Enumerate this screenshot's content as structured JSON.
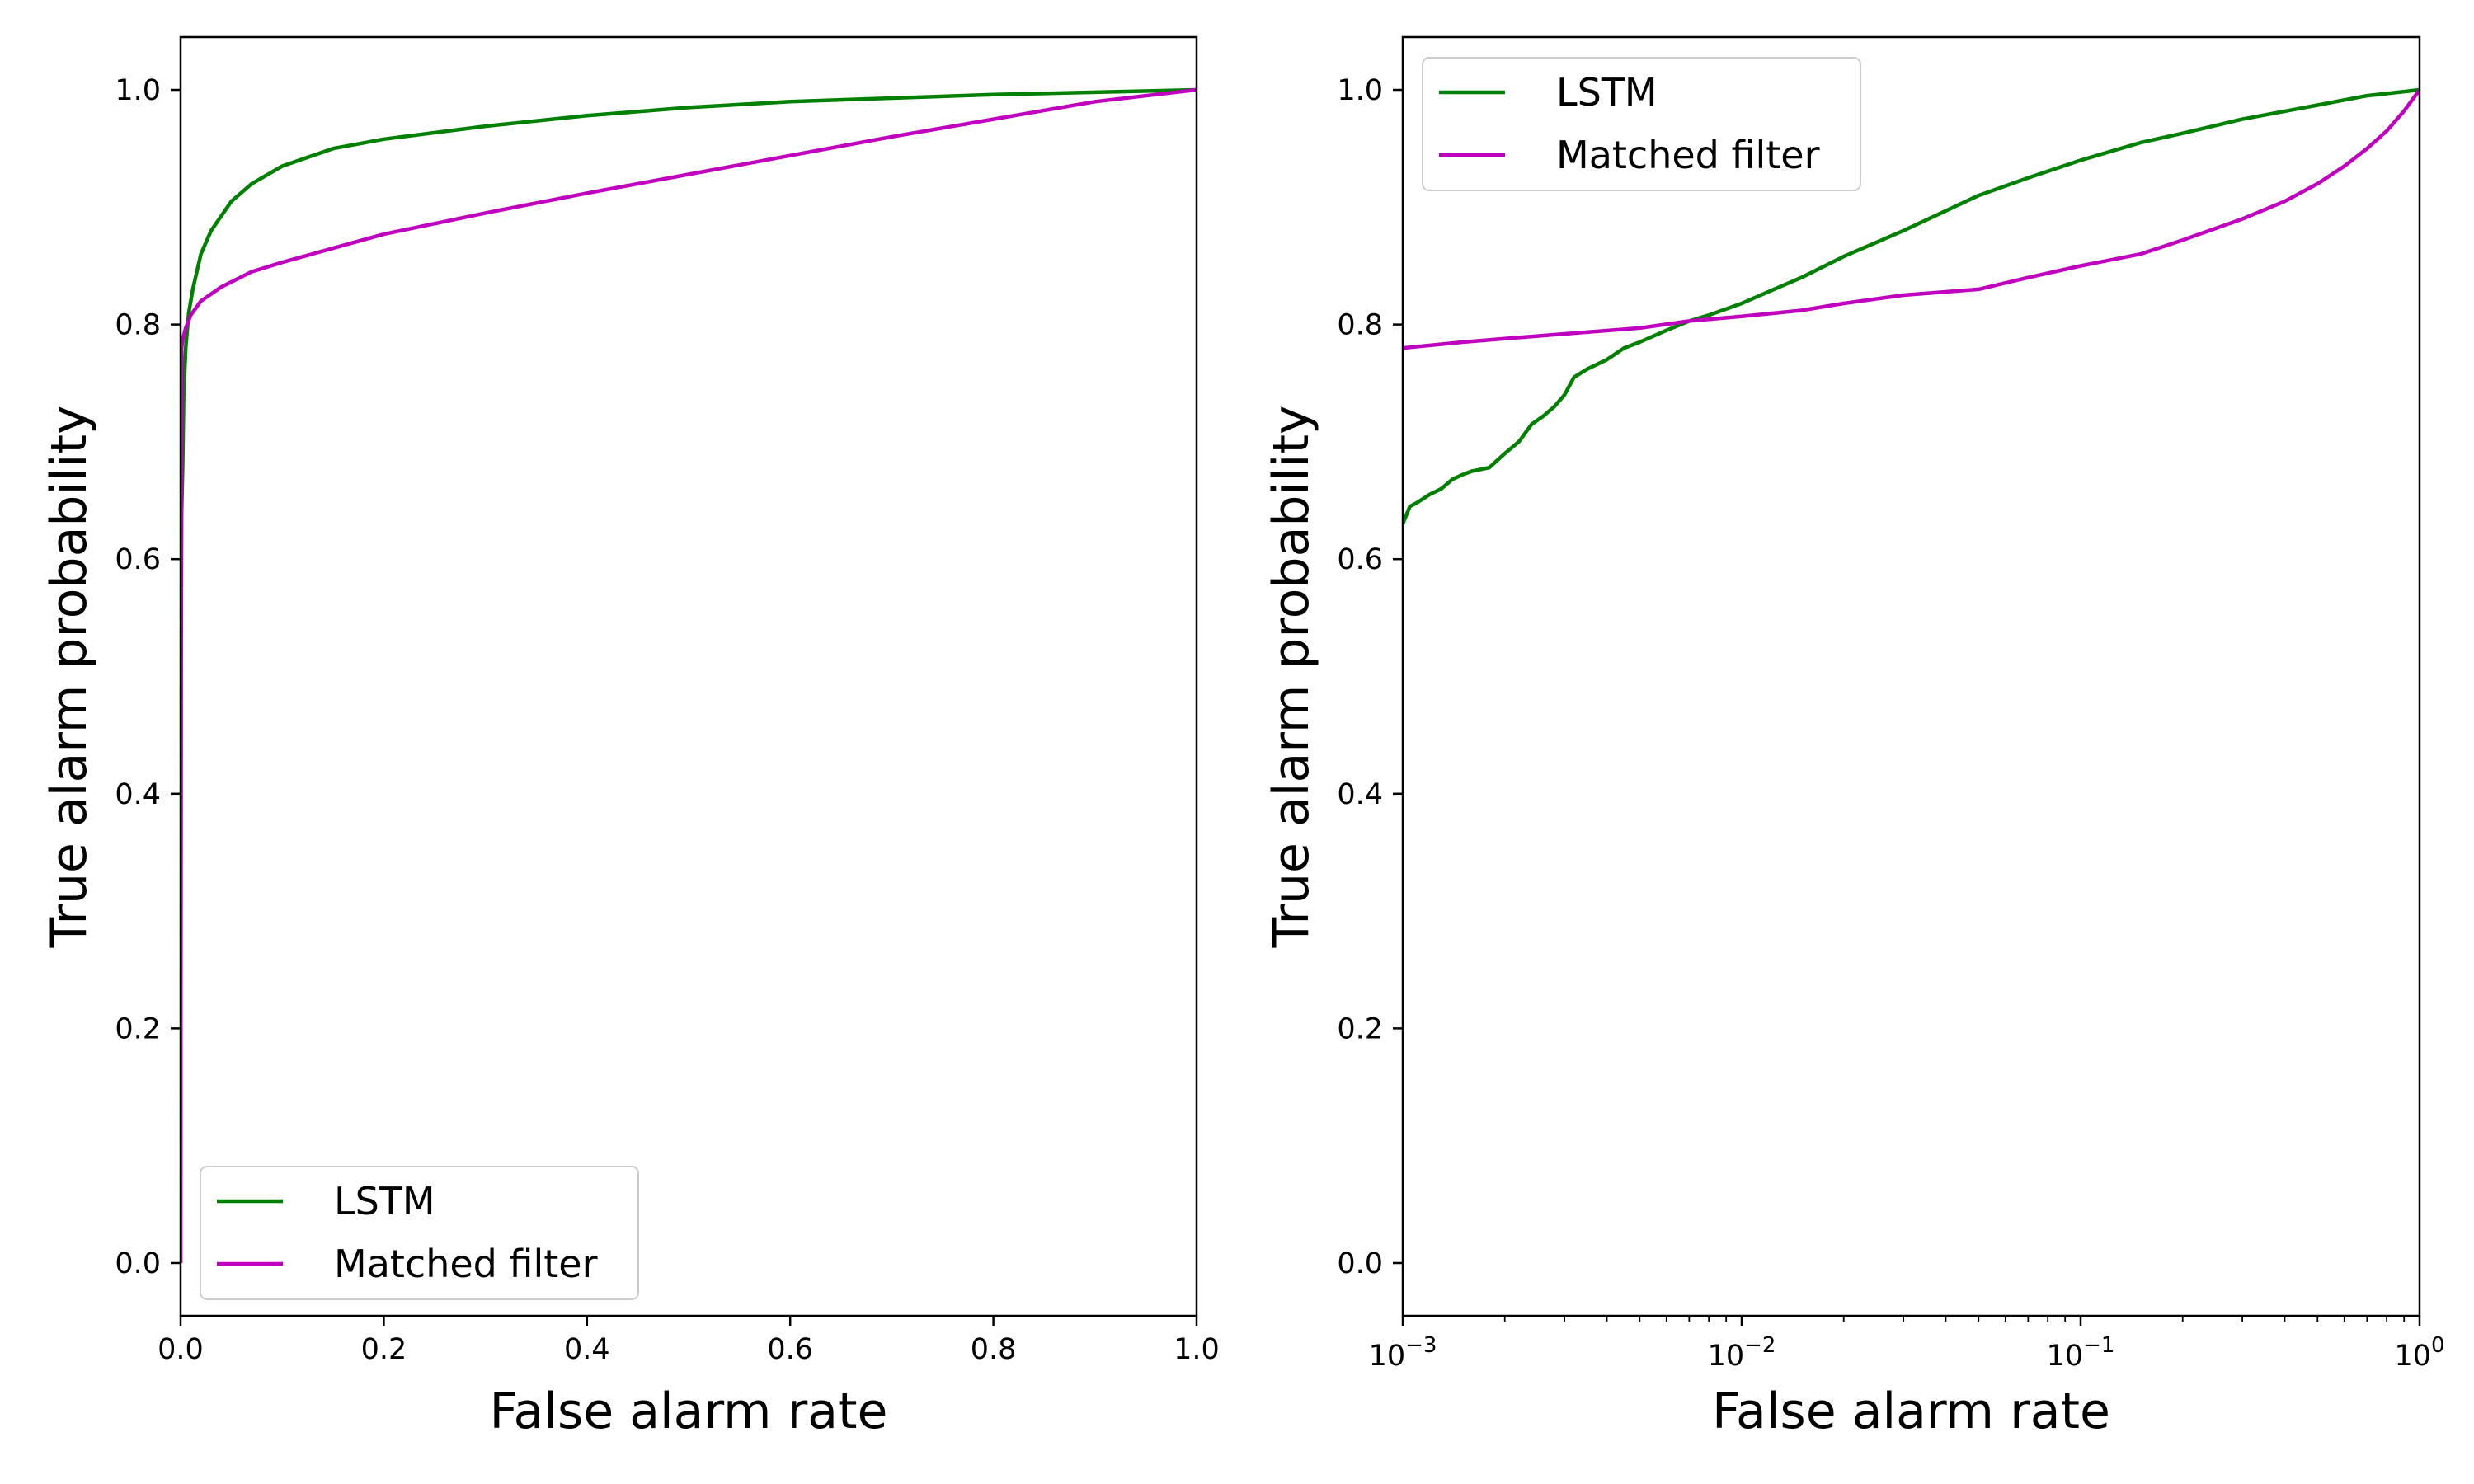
{
  "chart_data": [
    {
      "type": "line",
      "xscale": "linear",
      "xlabel": "False alarm rate",
      "ylabel": "True alarm probability",
      "xlim": [
        0,
        1
      ],
      "ylim": [
        -0.045,
        1.045
      ],
      "xticks": [
        0.0,
        0.2,
        0.4,
        0.6,
        0.8,
        1.0
      ],
      "xtick_labels": [
        "0.0",
        "0.2",
        "0.4",
        "0.6",
        "0.8",
        "1.0"
      ],
      "yticks": [
        0.0,
        0.2,
        0.4,
        0.6,
        0.8,
        1.0
      ],
      "ytick_labels": [
        "0.0",
        "0.2",
        "0.4",
        "0.6",
        "0.8",
        "1.0"
      ],
      "grid": false,
      "legend_position": "lower-left",
      "series": [
        {
          "name": "LSTM",
          "color": "#008000",
          "x": [
            0,
            0.0005,
            0.001,
            0.002,
            0.003,
            0.005,
            0.008,
            0.012,
            0.02,
            0.03,
            0.05,
            0.07,
            0.1,
            0.15,
            0.2,
            0.3,
            0.4,
            0.5,
            0.6,
            0.7,
            0.8,
            0.9,
            1.0
          ],
          "y": [
            0,
            0.5,
            0.64,
            0.68,
            0.74,
            0.78,
            0.81,
            0.83,
            0.86,
            0.88,
            0.905,
            0.92,
            0.935,
            0.95,
            0.958,
            0.969,
            0.978,
            0.985,
            0.99,
            0.993,
            0.996,
            0.998,
            1.0
          ]
        },
        {
          "name": "Matched filter",
          "color": "#bf00bf",
          "x": [
            0,
            0.0005,
            0.001,
            0.002,
            0.005,
            0.01,
            0.02,
            0.04,
            0.07,
            0.1,
            0.15,
            0.2,
            0.3,
            0.4,
            0.5,
            0.6,
            0.7,
            0.8,
            0.9,
            1.0
          ],
          "y": [
            0,
            0.6,
            0.78,
            0.787,
            0.797,
            0.808,
            0.82,
            0.832,
            0.845,
            0.853,
            0.865,
            0.877,
            0.895,
            0.912,
            0.928,
            0.944,
            0.96,
            0.975,
            0.99,
            1.0
          ]
        }
      ]
    },
    {
      "type": "line",
      "xscale": "log",
      "xlabel": "False alarm rate",
      "ylabel": "True alarm probability",
      "xlim": [
        0.001,
        1
      ],
      "ylim": [
        -0.045,
        1.045
      ],
      "xticks": [
        0.001,
        0.01,
        0.1,
        1
      ],
      "xtick_labels": [
        {
          "base": "10",
          "exp": "−3"
        },
        {
          "base": "10",
          "exp": "−2"
        },
        {
          "base": "10",
          "exp": "−1"
        },
        {
          "base": "10",
          "exp": "0"
        }
      ],
      "yticks": [
        0.0,
        0.2,
        0.4,
        0.6,
        0.8,
        1.0
      ],
      "ytick_labels": [
        "0.0",
        "0.2",
        "0.4",
        "0.6",
        "0.8",
        "1.0"
      ],
      "grid": false,
      "legend_position": "top-left",
      "series": [
        {
          "name": "LSTM",
          "color": "#008000",
          "x": [
            0.001,
            0.00105,
            0.0011,
            0.0012,
            0.0013,
            0.0014,
            0.0015,
            0.0016,
            0.0018,
            0.002,
            0.0022,
            0.0024,
            0.0026,
            0.0028,
            0.003,
            0.0032,
            0.0035,
            0.004,
            0.0045,
            0.005,
            0.006,
            0.007,
            0.008,
            0.01,
            0.012,
            0.015,
            0.02,
            0.03,
            0.05,
            0.07,
            0.1,
            0.15,
            0.2,
            0.3,
            0.5,
            0.7,
            1.0
          ],
          "y": [
            0.63,
            0.645,
            0.648,
            0.655,
            0.66,
            0.668,
            0.672,
            0.675,
            0.678,
            0.69,
            0.7,
            0.715,
            0.722,
            0.73,
            0.74,
            0.755,
            0.762,
            0.77,
            0.78,
            0.785,
            0.795,
            0.803,
            0.808,
            0.818,
            0.828,
            0.84,
            0.858,
            0.88,
            0.91,
            0.925,
            0.94,
            0.955,
            0.963,
            0.975,
            0.987,
            0.995,
            1.0
          ]
        },
        {
          "name": "Matched filter",
          "color": "#bf00bf",
          "x": [
            0.001,
            0.0015,
            0.002,
            0.003,
            0.005,
            0.007,
            0.01,
            0.015,
            0.02,
            0.03,
            0.05,
            0.07,
            0.1,
            0.15,
            0.2,
            0.3,
            0.4,
            0.5,
            0.6,
            0.7,
            0.8,
            0.9,
            1.0
          ],
          "y": [
            0.78,
            0.785,
            0.788,
            0.792,
            0.797,
            0.803,
            0.807,
            0.812,
            0.818,
            0.825,
            0.83,
            0.84,
            0.85,
            0.86,
            0.872,
            0.89,
            0.905,
            0.92,
            0.935,
            0.95,
            0.965,
            0.982,
            1.0
          ]
        }
      ]
    }
  ]
}
